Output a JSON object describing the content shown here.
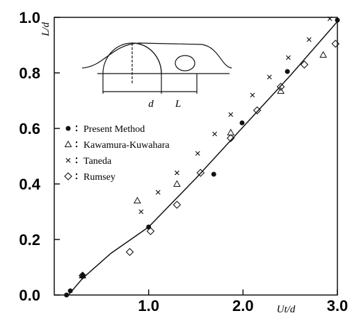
{
  "chart_data": {
    "type": "scatter",
    "xlabel": "Ut/d",
    "ylabel": "L/d",
    "xlim": [
      0,
      3.0
    ],
    "ylim": [
      0,
      1.0
    ],
    "xticks": [
      {
        "value": 1,
        "label": "1.0"
      },
      {
        "value": 2,
        "label": "2.0"
      },
      {
        "value": 3,
        "label": "3.0"
      }
    ],
    "yticks": [
      {
        "value": 0,
        "label": "0.0"
      },
      {
        "value": 0.2,
        "label": "0.2"
      },
      {
        "value": 0.4,
        "label": "0.4"
      },
      {
        "value": 0.6,
        "label": "0.6"
      },
      {
        "value": 0.8,
        "label": "0.8"
      },
      {
        "value": 1,
        "label": "1.0"
      }
    ],
    "annotations": [
      "d",
      "L"
    ],
    "series": [
      {
        "name": "Present Method",
        "marker": "dot",
        "color": "#111",
        "x": [
          0.13,
          0.17,
          0.3,
          1.0,
          1.69,
          1.99,
          2.47,
          3.0
        ],
        "values": [
          0.0,
          0.015,
          0.07,
          0.245,
          0.435,
          0.62,
          0.805,
          0.99
        ]
      },
      {
        "name": "Kawamura-Kuwahara",
        "marker": "triangle",
        "color": "#111",
        "x": [
          0.3,
          0.88,
          1.3,
          1.87,
          2.4,
          2.85
        ],
        "values": [
          0.07,
          0.34,
          0.4,
          0.585,
          0.735,
          0.865
        ]
      },
      {
        "name": "Taneda",
        "marker": "cross",
        "color": "#111",
        "x": [
          0.92,
          1.1,
          1.3,
          1.52,
          1.7,
          1.87,
          2.1,
          2.28,
          2.48,
          2.7,
          2.92
        ],
        "values": [
          0.3,
          0.37,
          0.44,
          0.51,
          0.58,
          0.65,
          0.72,
          0.785,
          0.855,
          0.92,
          0.995
        ]
      },
      {
        "name": "Rumsey",
        "marker": "diamond",
        "color": "#111",
        "x": [
          0.3,
          0.8,
          1.02,
          1.3,
          1.55,
          1.87,
          2.15,
          2.4,
          2.65,
          2.98
        ],
        "values": [
          0.07,
          0.155,
          0.23,
          0.325,
          0.44,
          0.565,
          0.665,
          0.75,
          0.83,
          0.905
        ]
      },
      {
        "marker": "line",
        "color": "#111",
        "x": [
          0.15,
          0.3,
          0.6,
          1.0,
          1.5,
          2.0,
          2.5,
          3.0
        ],
        "values": [
          0.0,
          0.06,
          0.15,
          0.245,
          0.42,
          0.605,
          0.79,
          0.985
        ]
      }
    ]
  }
}
